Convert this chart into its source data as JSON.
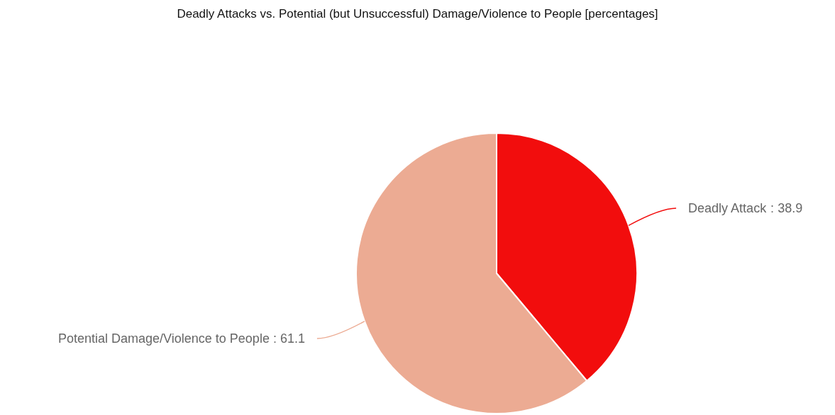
{
  "chart_data": {
    "type": "pie",
    "title": "Deadly Attacks vs. Potential (but Unsuccessful) Damage/Violence to People [percentages]",
    "categories": [
      "Deadly Attack",
      "Potential Damage/Violence to People"
    ],
    "values": [
      38.9,
      61.1
    ],
    "value_labels": [
      ": 38.9",
      ": 61.1"
    ],
    "colors": [
      "#f20d0d",
      "#ecab93"
    ],
    "legend": false
  }
}
